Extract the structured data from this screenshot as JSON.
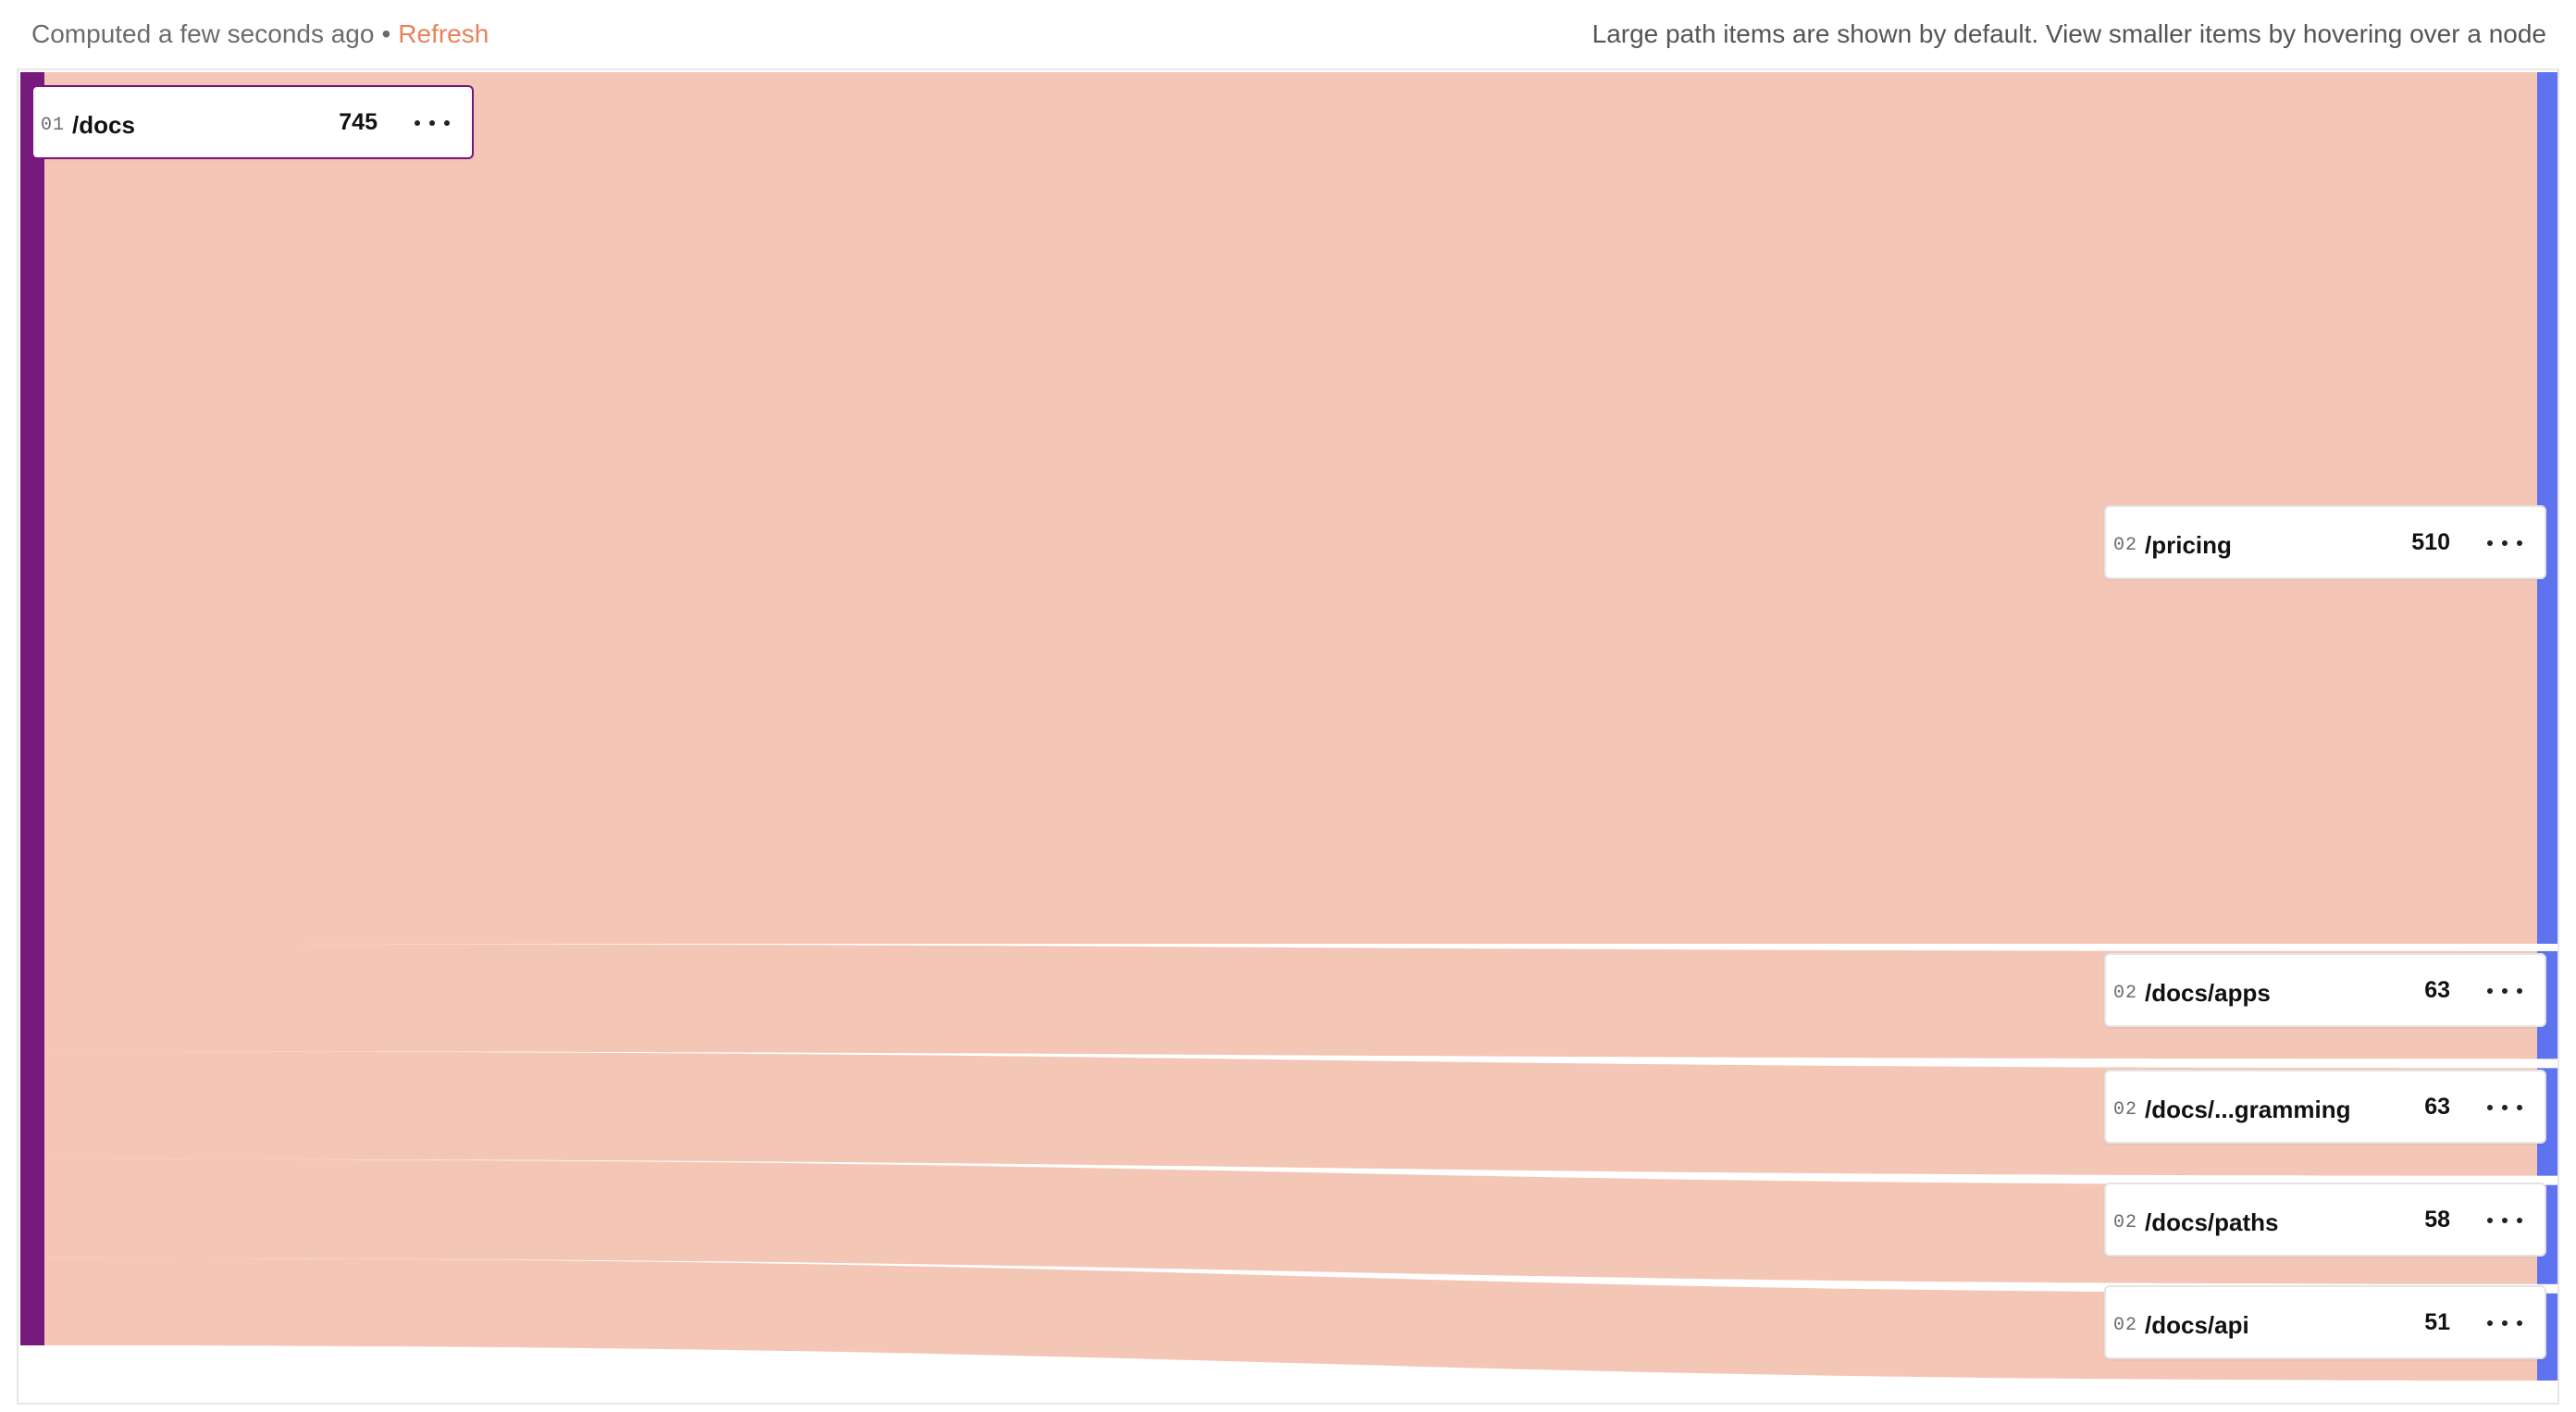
{
  "header": {
    "computed_text": "Computed a few seconds ago",
    "separator": "•",
    "refresh_label": "Refresh",
    "hint_text": "Large path items are shown by default. View smaller items by hovering over a node"
  },
  "colors": {
    "source_bar": "#761a7d",
    "target_bar": "#5f73f0",
    "link_fill": "#f4c6b6",
    "refresh": "#e8825a"
  },
  "source_node": {
    "step": "01",
    "path": "/docs",
    "count": "745"
  },
  "target_nodes": [
    {
      "step": "02",
      "path": "/pricing",
      "count": "510"
    },
    {
      "step": "02",
      "path": "/docs/apps",
      "count": "63"
    },
    {
      "step": "02",
      "path": "/docs/...gramming",
      "count": "63"
    },
    {
      "step": "02",
      "path": "/docs/paths",
      "count": "58"
    },
    {
      "step": "02",
      "path": "/docs/api",
      "count": "51"
    }
  ],
  "chart_data": {
    "type": "sankey",
    "source": {
      "label": "/docs",
      "value": 745
    },
    "links": [
      {
        "from": "/docs",
        "to": "/pricing",
        "value": 510
      },
      {
        "from": "/docs",
        "to": "/docs/apps",
        "value": 63
      },
      {
        "from": "/docs",
        "to": "/docs/...gramming",
        "value": 63
      },
      {
        "from": "/docs",
        "to": "/docs/paths",
        "value": 58
      },
      {
        "from": "/docs",
        "to": "/docs/api",
        "value": 51
      }
    ]
  }
}
